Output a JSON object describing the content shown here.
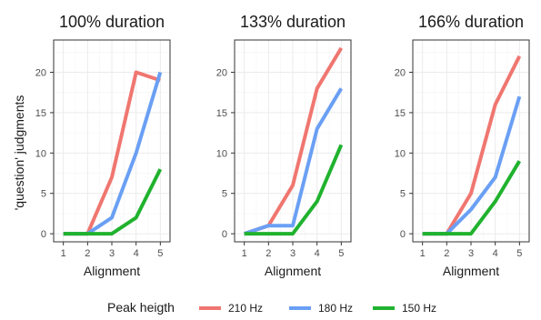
{
  "ylabel": "'question' judgments",
  "legend": {
    "title": "Peak heigth",
    "position": "bottom"
  },
  "colors": {
    "s210": "#F07670",
    "s180": "#6A9FF4",
    "s150": "#20B22E",
    "grid": "#ebebeb",
    "panel_border": "#333333",
    "text": "#1a1a1a",
    "tick_label": "#4d4d4d"
  },
  "chart_data": [
    {
      "type": "line",
      "title": "100% duration",
      "xlabel": "Alignment",
      "ylabel": "'question' judgments",
      "x": [
        1,
        2,
        3,
        4,
        5
      ],
      "xlim": [
        0.6,
        5.4
      ],
      "ylim": [
        -1,
        24
      ],
      "xticks": [
        1,
        2,
        3,
        4,
        5
      ],
      "yticks": [
        0,
        5,
        10,
        15,
        20
      ],
      "grid": true,
      "series": [
        {
          "name": "210 Hz",
          "values": [
            0,
            0,
            7,
            20,
            19
          ]
        },
        {
          "name": "180 Hz",
          "values": [
            0,
            0,
            2,
            10,
            20
          ]
        },
        {
          "name": "150 Hz",
          "values": [
            0,
            0,
            0,
            2,
            8
          ]
        }
      ]
    },
    {
      "type": "line",
      "title": "133% duration",
      "xlabel": "Alignment",
      "ylabel": "",
      "x": [
        1,
        2,
        3,
        4,
        5
      ],
      "xlim": [
        0.6,
        5.4
      ],
      "ylim": [
        -1,
        24
      ],
      "xticks": [
        1,
        2,
        3,
        4,
        5
      ],
      "yticks": [
        0,
        5,
        10,
        15,
        20
      ],
      "grid": true,
      "series": [
        {
          "name": "210 Hz",
          "values": [
            0,
            1,
            6,
            18,
            23
          ]
        },
        {
          "name": "180 Hz",
          "values": [
            0,
            1,
            1,
            13,
            18
          ]
        },
        {
          "name": "150 Hz",
          "values": [
            0,
            0,
            0,
            4,
            11
          ]
        }
      ]
    },
    {
      "type": "line",
      "title": "166% duration",
      "xlabel": "Alignment",
      "ylabel": "",
      "x": [
        1,
        2,
        3,
        4,
        5
      ],
      "xlim": [
        0.6,
        5.4
      ],
      "ylim": [
        -1,
        24
      ],
      "xticks": [
        1,
        2,
        3,
        4,
        5
      ],
      "yticks": [
        0,
        5,
        10,
        15,
        20
      ],
      "grid": true,
      "series": [
        {
          "name": "210 Hz",
          "values": [
            0,
            0,
            5,
            16,
            22
          ]
        },
        {
          "name": "180 Hz",
          "values": [
            0,
            0,
            3,
            7,
            17
          ]
        },
        {
          "name": "150 Hz",
          "values": [
            0,
            0,
            0,
            4,
            9
          ]
        }
      ]
    }
  ]
}
